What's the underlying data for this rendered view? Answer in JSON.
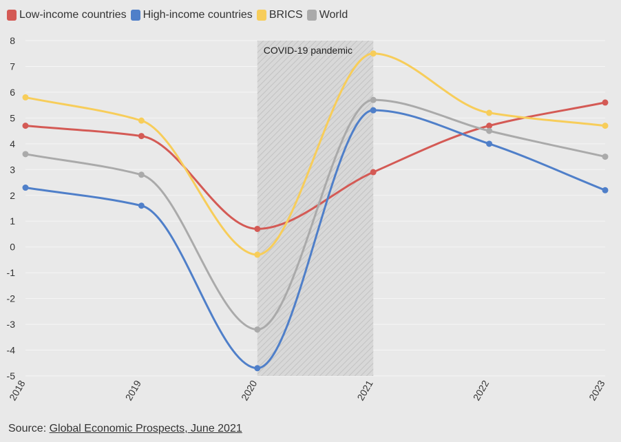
{
  "colors": {
    "background": "#e9e9e9",
    "grid": "#f6f6f6",
    "shade_fill": "#d8d8d8",
    "shade_hatch": "#c2c2c2"
  },
  "source": {
    "prefix": "Source: ",
    "link_text": "Global Economic Prospects, June 2021"
  },
  "chart_data": {
    "type": "line",
    "title": "",
    "xlabel": "",
    "ylabel": "",
    "x": [
      "2018",
      "2019",
      "2020",
      "2021",
      "2022",
      "2023"
    ],
    "y_ticks": [
      "8",
      "7",
      "6",
      "5",
      "4",
      "3",
      "2",
      "1",
      "0",
      "-1",
      "-2",
      "-3",
      "-4",
      "-5"
    ],
    "ylim": [
      -5,
      8
    ],
    "grid": true,
    "legend_position": "top-left",
    "series": [
      {
        "name": "Low-income countries",
        "color": "#d45a55",
        "values": [
          4.7,
          4.3,
          0.7,
          2.9,
          4.7,
          5.6
        ]
      },
      {
        "name": "High-income countries",
        "color": "#4f7fc9",
        "values": [
          2.3,
          1.6,
          -4.7,
          5.3,
          4.0,
          2.2
        ]
      },
      {
        "name": "BRICS",
        "color": "#f7cd5a",
        "values": [
          5.8,
          4.9,
          -0.3,
          7.5,
          5.2,
          4.7
        ]
      },
      {
        "name": "World",
        "color": "#aaaaaa",
        "values": [
          3.6,
          2.8,
          -3.2,
          5.7,
          4.5,
          3.5
        ]
      }
    ],
    "annotations": [
      {
        "label": "COVID-19 pandemic",
        "x_start": "2020",
        "x_end": "2021"
      }
    ]
  }
}
